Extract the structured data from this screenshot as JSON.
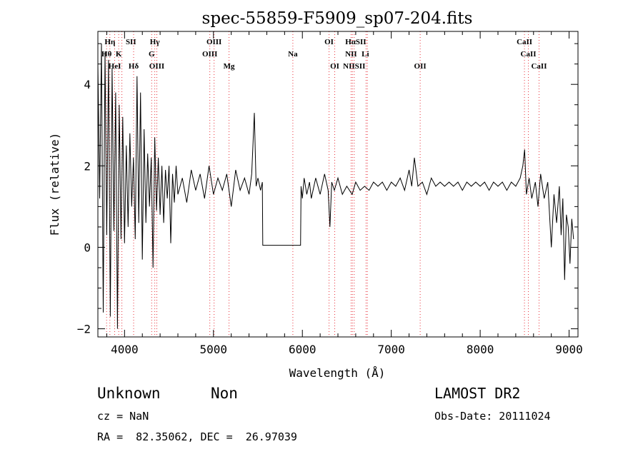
{
  "chart_data": {
    "type": "line",
    "title": "spec-55859-F5909_sp07-204.fits",
    "xlabel": "Wavelength (Å)",
    "ylabel": "Flux (relative)",
    "xlim": [
      3700,
      9100
    ],
    "ylim": [
      -2.2,
      5.3
    ],
    "x_ticks": [
      4000,
      5000,
      6000,
      7000,
      8000,
      9000
    ],
    "x_tick_labels": [
      "4000",
      "5000",
      "6000",
      "7000",
      "8000",
      "9000"
    ],
    "y_ticks": [
      -2,
      0,
      2,
      4
    ],
    "y_tick_labels": [
      "−2",
      "0",
      "2",
      "4"
    ],
    "grid": false,
    "legend": "none",
    "series": [
      {
        "points": [
          [
            3700,
            4.5
          ],
          [
            3720,
            1.2
          ],
          [
            3740,
            5.0
          ],
          [
            3760,
            -1.6
          ],
          [
            3780,
            4.8
          ],
          [
            3800,
            0.3
          ],
          [
            3820,
            4.6
          ],
          [
            3840,
            -1.7
          ],
          [
            3860,
            4.4
          ],
          [
            3880,
            0.4
          ],
          [
            3900,
            3.8
          ],
          [
            3920,
            -2.0
          ],
          [
            3940,
            3.5
          ],
          [
            3960,
            0.2
          ],
          [
            3980,
            3.2
          ],
          [
            4000,
            0.1
          ],
          [
            4020,
            2.5
          ],
          [
            4040,
            0.5
          ],
          [
            4060,
            2.8
          ],
          [
            4080,
            1.0
          ],
          [
            4100,
            2.2
          ],
          [
            4120,
            0.2
          ],
          [
            4140,
            4.2
          ],
          [
            4160,
            0.6
          ],
          [
            4180,
            3.8
          ],
          [
            4200,
            -0.3
          ],
          [
            4220,
            2.9
          ],
          [
            4240,
            0.6
          ],
          [
            4260,
            2.3
          ],
          [
            4280,
            1.0
          ],
          [
            4300,
            2.2
          ],
          [
            4320,
            -0.5
          ],
          [
            4340,
            2.7
          ],
          [
            4360,
            0.9
          ],
          [
            4380,
            2.2
          ],
          [
            4400,
            0.8
          ],
          [
            4420,
            2.0
          ],
          [
            4440,
            0.6
          ],
          [
            4460,
            1.9
          ],
          [
            4480,
            1.2
          ],
          [
            4500,
            2.0
          ],
          [
            4520,
            0.1
          ],
          [
            4540,
            1.8
          ],
          [
            4560,
            1.1
          ],
          [
            4580,
            2.0
          ],
          [
            4600,
            1.3
          ],
          [
            4650,
            1.7
          ],
          [
            4700,
            1.1
          ],
          [
            4750,
            1.9
          ],
          [
            4800,
            1.4
          ],
          [
            4850,
            1.8
          ],
          [
            4900,
            1.2
          ],
          [
            4950,
            2.0
          ],
          [
            5000,
            1.3
          ],
          [
            5050,
            1.7
          ],
          [
            5100,
            1.4
          ],
          [
            5150,
            1.8
          ],
          [
            5200,
            1.0
          ],
          [
            5250,
            1.9
          ],
          [
            5300,
            1.4
          ],
          [
            5350,
            1.7
          ],
          [
            5400,
            1.3
          ],
          [
            5430,
            1.8
          ],
          [
            5460,
            3.3
          ],
          [
            5480,
            1.5
          ],
          [
            5500,
            1.7
          ],
          [
            5530,
            1.4
          ],
          [
            5550,
            1.6
          ],
          [
            5555,
            0.05
          ],
          [
            5980,
            0.05
          ],
          [
            5985,
            1.5
          ],
          [
            6000,
            1.2
          ],
          [
            6020,
            1.7
          ],
          [
            6050,
            1.3
          ],
          [
            6080,
            1.6
          ],
          [
            6100,
            1.2
          ],
          [
            6150,
            1.7
          ],
          [
            6200,
            1.3
          ],
          [
            6250,
            1.8
          ],
          [
            6290,
            1.4
          ],
          [
            6310,
            0.5
          ],
          [
            6330,
            1.6
          ],
          [
            6360,
            1.4
          ],
          [
            6400,
            1.7
          ],
          [
            6450,
            1.3
          ],
          [
            6500,
            1.5
          ],
          [
            6560,
            1.3
          ],
          [
            6600,
            1.6
          ],
          [
            6650,
            1.4
          ],
          [
            6700,
            1.5
          ],
          [
            6750,
            1.4
          ],
          [
            6800,
            1.6
          ],
          [
            6850,
            1.5
          ],
          [
            6900,
            1.6
          ],
          [
            6950,
            1.4
          ],
          [
            7000,
            1.6
          ],
          [
            7050,
            1.5
          ],
          [
            7100,
            1.7
          ],
          [
            7150,
            1.4
          ],
          [
            7200,
            1.9
          ],
          [
            7230,
            1.5
          ],
          [
            7260,
            2.2
          ],
          [
            7300,
            1.5
          ],
          [
            7350,
            1.6
          ],
          [
            7400,
            1.3
          ],
          [
            7450,
            1.7
          ],
          [
            7500,
            1.5
          ],
          [
            7550,
            1.6
          ],
          [
            7600,
            1.5
          ],
          [
            7650,
            1.6
          ],
          [
            7700,
            1.5
          ],
          [
            7750,
            1.6
          ],
          [
            7800,
            1.4
          ],
          [
            7850,
            1.6
          ],
          [
            7900,
            1.5
          ],
          [
            7950,
            1.6
          ],
          [
            8000,
            1.5
          ],
          [
            8050,
            1.6
          ],
          [
            8100,
            1.4
          ],
          [
            8150,
            1.6
          ],
          [
            8200,
            1.5
          ],
          [
            8250,
            1.6
          ],
          [
            8300,
            1.4
          ],
          [
            8350,
            1.6
          ],
          [
            8400,
            1.5
          ],
          [
            8450,
            1.7
          ],
          [
            8480,
            2.0
          ],
          [
            8500,
            2.4
          ],
          [
            8520,
            1.3
          ],
          [
            8550,
            1.7
          ],
          [
            8580,
            1.2
          ],
          [
            8620,
            1.6
          ],
          [
            8650,
            1.0
          ],
          [
            8680,
            1.8
          ],
          [
            8720,
            1.2
          ],
          [
            8760,
            1.6
          ],
          [
            8800,
            0.0
          ],
          [
            8830,
            1.3
          ],
          [
            8860,
            0.6
          ],
          [
            8890,
            1.5
          ],
          [
            8910,
            0.3
          ],
          [
            8930,
            1.2
          ],
          [
            8950,
            -0.8
          ],
          [
            8970,
            0.8
          ],
          [
            8990,
            0.5
          ],
          [
            9010,
            -0.4
          ],
          [
            9030,
            0.7
          ],
          [
            9050,
            0.2
          ]
        ]
      }
    ],
    "annotations": {
      "line_markers": [
        {
          "label": "Hη",
          "row": 0,
          "x": 3835
        },
        {
          "label": "SII",
          "row": 0,
          "x": 4072
        },
        {
          "label": "Hγ",
          "row": 0,
          "x": 4340
        },
        {
          "label": "OIII",
          "row": 0,
          "x": 5007
        },
        {
          "label": "OI",
          "row": 0,
          "x": 6300
        },
        {
          "label": "HαSII",
          "row": 0,
          "x": 6600
        },
        {
          "label": "CaII",
          "row": 0,
          "x": 8498
        },
        {
          "label": "Hθ",
          "row": 1,
          "x": 3798
        },
        {
          "label": "K",
          "row": 1,
          "x": 3934
        },
        {
          "label": "G",
          "row": 1,
          "x": 4305
        },
        {
          "label": "OIII",
          "row": 1,
          "x": 4959
        },
        {
          "label": "Na",
          "row": 1,
          "x": 5893
        },
        {
          "label": "NII",
          "row": 1,
          "x": 6548
        },
        {
          "label": "Li",
          "row": 1,
          "x": 6708
        },
        {
          "label": "CaII",
          "row": 1,
          "x": 8542
        },
        {
          "label": "HeI",
          "row": 2,
          "x": 3889
        },
        {
          "label": "Hδ",
          "row": 2,
          "x": 4102
        },
        {
          "label": "OIII",
          "row": 2,
          "x": 4363
        },
        {
          "label": "Mg",
          "row": 2,
          "x": 5175
        },
        {
          "label": "OI",
          "row": 2,
          "x": 6364
        },
        {
          "label": "NIISII",
          "row": 2,
          "x": 6583
        },
        {
          "label": "OII",
          "row": 2,
          "x": 7325
        },
        {
          "label": "CaII",
          "row": 2,
          "x": 8662
        }
      ],
      "dotted_lines_x": [
        3798,
        3835,
        3889,
        3934,
        3970,
        4102,
        4305,
        4340,
        4363,
        4959,
        5007,
        5175,
        5893,
        6300,
        6364,
        6548,
        6563,
        6583,
        6716,
        6731,
        7325,
        8498,
        8542,
        8662
      ],
      "marker_color": "#e8313a"
    }
  },
  "footer": {
    "class_label": "Unknown",
    "subclass_label": "Non",
    "survey_label": "LAMOST DR2",
    "cz_text": "cz = NaN",
    "obsdate_text": "Obs-Date: 20111024",
    "radec_text": "RA =  82.35062, DEC =  26.97039"
  }
}
